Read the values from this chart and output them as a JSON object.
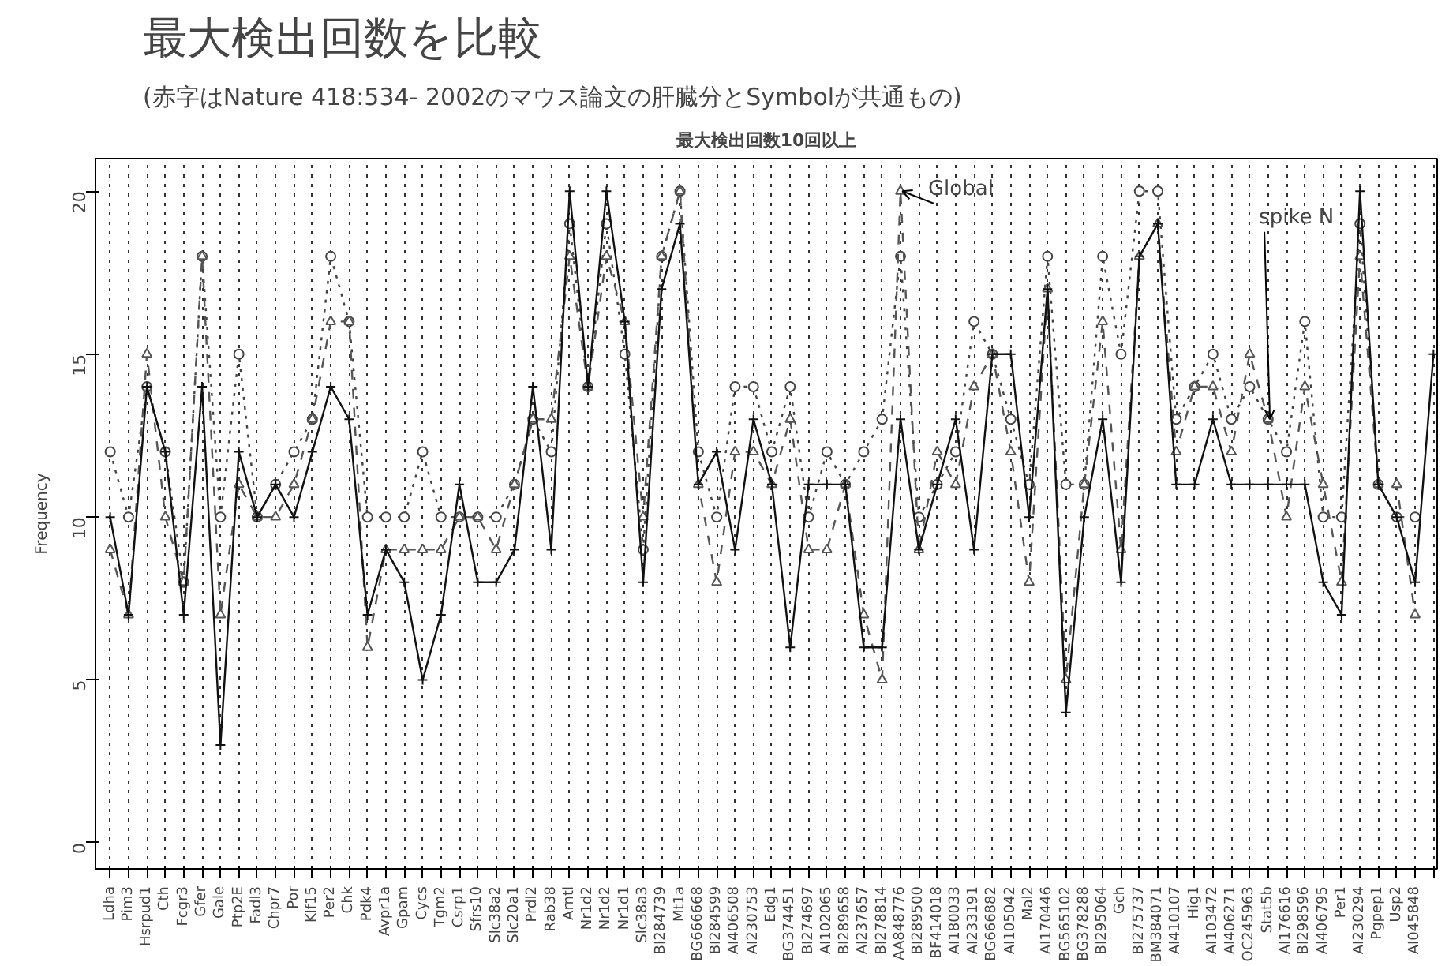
{
  "chart_data": {
    "type": "line",
    "title": "最大検出回数を比較",
    "subtitle": "(赤字はNature 418:534- 2002のマウス論文の肝臓分とSymbolが共通もの)",
    "ylabel": "Frequency",
    "categories": [
      "Ldha",
      "Pim3",
      "Hsrpud1",
      "Cth",
      "Fcgr3",
      "Gfer",
      "Gale",
      "Ptp2E",
      "Fadl3",
      "Chpr7",
      "Por",
      "Klf15",
      "Per2",
      "Chk",
      "Pdk4",
      "Avpr1a",
      "Gpam",
      "Cycs",
      "Tgm2",
      "Csrp1",
      "Sfrs10",
      "Slc38a2",
      "Slc20a1",
      "Prdl2",
      "Rab38",
      "Arntl",
      "Nr1d2",
      "Nr1d2",
      "Nr1d1",
      "Slc38a3",
      "BI284739",
      "Mt1a",
      "BG666668",
      "BI284599",
      "AI406508",
      "AI230753",
      "Edg1",
      "BG374451",
      "BI274697",
      "AI102065",
      "BI289658",
      "AI237657",
      "BI278814",
      "AA848776",
      "BI289500",
      "BF414018",
      "AI180033",
      "AI233191",
      "BG666882",
      "AI105042",
      "Mal2",
      "AI170446",
      "BG565102",
      "BG378288",
      "BI295064",
      "Gch",
      "BI275737",
      "BM384071",
      "AI410107",
      "Hig1",
      "AI103472",
      "AI406271",
      "OC245963",
      "Stat5b",
      "AI176616",
      "BI298596",
      "AI406795",
      "Per1",
      "AI230294",
      "Pgpep1",
      "Usp2",
      "AI045848",
      null
    ],
    "series": [
      {
        "color": "#444444",
        "marker": "circle",
        "line_style": "dotted",
        "values": [
          12,
          10,
          14,
          12,
          8,
          18,
          10,
          15,
          10,
          11,
          12,
          13,
          18,
          16,
          10,
          10,
          10,
          12,
          10,
          10,
          10,
          10,
          11,
          13,
          12,
          19,
          14,
          19,
          15,
          9,
          18,
          20,
          12,
          10,
          14,
          14,
          12,
          14,
          10,
          12,
          11,
          12,
          13,
          18,
          10,
          11,
          12,
          16,
          15,
          13,
          11,
          18,
          11,
          11,
          18,
          15,
          20,
          20,
          13,
          14,
          15,
          13,
          14,
          13,
          12,
          16,
          10,
          10,
          19,
          11,
          10,
          10,
          null
        ]
      },
      {
        "color": "#555555",
        "marker": "triangle",
        "line_style": "dashed",
        "values": [
          9,
          7,
          15,
          10,
          8,
          18,
          7,
          11,
          10,
          10,
          11,
          13,
          16,
          16,
          6,
          9,
          9,
          9,
          9,
          10,
          10,
          9,
          11,
          13,
          13,
          18,
          14,
          18,
          16,
          10,
          18,
          20,
          11,
          8,
          12,
          12,
          11,
          13,
          9,
          9,
          11,
          7,
          5,
          20,
          9,
          12,
          11,
          14,
          15,
          12,
          8,
          17,
          5,
          11,
          16,
          9,
          18,
          19,
          12,
          14,
          14,
          12,
          15,
          13,
          10,
          14,
          11,
          8,
          18,
          11,
          11,
          7,
          null
        ]
      },
      {
        "color": "#111111",
        "marker": "cross",
        "line_style": "solid",
        "values": [
          10,
          7,
          14,
          12,
          7,
          14,
          3,
          12,
          10,
          11,
          10,
          12,
          14,
          13,
          7,
          9,
          8,
          5,
          7,
          11,
          8,
          8,
          9,
          14,
          9,
          20,
          14,
          20,
          16,
          8,
          17,
          19,
          11,
          12,
          9,
          13,
          11,
          6,
          11,
          11,
          11,
          6,
          6,
          13,
          9,
          11,
          13,
          9,
          15,
          15,
          10,
          17,
          4,
          10,
          13,
          8,
          18,
          19,
          11,
          11,
          13,
          11,
          11,
          11,
          11,
          11,
          8,
          7,
          20,
          11,
          10,
          8,
          15
        ]
      }
    ],
    "ylim": [
      -0.8,
      21
    ],
    "yticks": [
      0,
      5,
      10,
      15,
      20
    ],
    "grid": "x",
    "annotations": [
      "最大検出回数10回以上",
      {
        "text": "Global",
        "x": "AA848776",
        "y": 20
      },
      {
        "text": "spike N",
        "x": "Stat5b",
        "y": 13
      }
    ]
  }
}
